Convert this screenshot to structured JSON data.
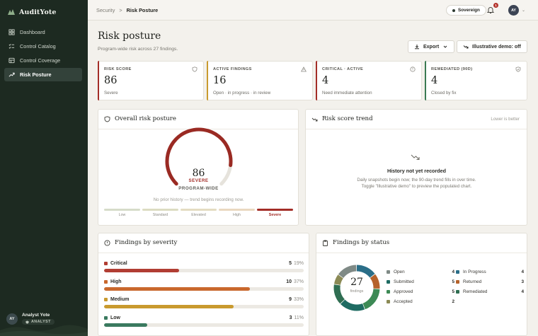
{
  "app": {
    "name": "AuditYote"
  },
  "sidebar": {
    "items": [
      {
        "label": "Dashboard",
        "icon": "dashboard-icon",
        "active": false
      },
      {
        "label": "Control Catalog",
        "icon": "checklist-icon",
        "active": false
      },
      {
        "label": "Control Coverage",
        "icon": "coverage-icon",
        "active": false
      },
      {
        "label": "Risk Posture",
        "icon": "trending-icon",
        "active": true
      }
    ],
    "user": {
      "initials": "AY",
      "name": "Analyst Yote",
      "role": "ANALYST"
    }
  },
  "topbar": {
    "breadcrumb": {
      "parent": "Security",
      "separator": ">",
      "current": "Risk Posture"
    },
    "scope_badge": "Sovereign",
    "notification_count": "1",
    "user_initials": "AY"
  },
  "page": {
    "title": "Risk posture",
    "subtitle": "Program-wide risk across 27 findings.",
    "export_label": "Export",
    "demo_toggle_label": "Illustrative demo: off"
  },
  "kpis": [
    {
      "label": "RISK SCORE",
      "value": "86",
      "sub": "Severe",
      "color": "#a32d27",
      "icon": "shield-icon"
    },
    {
      "label": "ACTIVE FINDINGS",
      "value": "16",
      "sub": "Open · in progress · in review",
      "color": "#c99a2e",
      "icon": "warning-icon"
    },
    {
      "label": "CRITICAL · ACTIVE",
      "value": "4",
      "sub": "Need immediate attention",
      "color": "#a32d27",
      "icon": "alert-circle-icon"
    },
    {
      "label": "REMEDIATED (90D)",
      "value": "4",
      "sub": "Closed by fix",
      "color": "#3a7a52",
      "icon": "shield-check-icon"
    }
  ],
  "overall": {
    "title": "Overall risk posture",
    "score": "86",
    "score_fraction": 0.86,
    "level": "SEVERE",
    "scope": "PROGRAM-WIDE",
    "note": "No prior history — trend begins recording now.",
    "scale": [
      {
        "label": "Low",
        "color": "#d6dcc9",
        "active": false
      },
      {
        "label": "Standard",
        "color": "#dcdcc2",
        "active": false
      },
      {
        "label": "Elevated",
        "color": "#e4dcc2",
        "active": false
      },
      {
        "label": "High",
        "color": "#ead8c0",
        "active": false
      },
      {
        "label": "Severe",
        "color": "#a32d27",
        "active": true
      }
    ]
  },
  "trend": {
    "title": "Risk score trend",
    "note": "Lower is better",
    "empty_title": "History not yet recorded",
    "empty_line1": "Daily snapshots begin now; the 90-day trend fills in over time.",
    "empty_line2": "Toggle \"Illustrative demo\" to preview the populated chart."
  },
  "severity": {
    "title": "Findings by severity",
    "rows": [
      {
        "name": "Critical",
        "count": "5",
        "pct": "19%",
        "fraction": 0.19,
        "color": "#b13d33"
      },
      {
        "name": "High",
        "count": "10",
        "pct": "37%",
        "fraction": 0.37,
        "color": "#c9682d"
      },
      {
        "name": "Medium",
        "count": "9",
        "pct": "33%",
        "fraction": 0.33,
        "color": "#c99a2e"
      },
      {
        "name": "Low",
        "count": "3",
        "pct": "11%",
        "fraction": 0.11,
        "color": "#3a7a5f"
      }
    ]
  },
  "status": {
    "title": "Findings by status",
    "total": "27",
    "total_label": "findings",
    "items": [
      {
        "name": "Open",
        "count": "4",
        "color": "#7f8a86"
      },
      {
        "name": "Submitted",
        "count": "5",
        "color": "#1e6b62"
      },
      {
        "name": "Approved",
        "count": "5",
        "color": "#3d8a55"
      },
      {
        "name": "Accepted",
        "count": "2",
        "color": "#8b8a55"
      },
      {
        "name": "In Progress",
        "count": "4",
        "color": "#2a6e88"
      },
      {
        "name": "Returned",
        "count": "3",
        "color": "#b5622b"
      },
      {
        "name": "Remediated",
        "count": "4",
        "color": "#2f6e52"
      }
    ]
  }
}
